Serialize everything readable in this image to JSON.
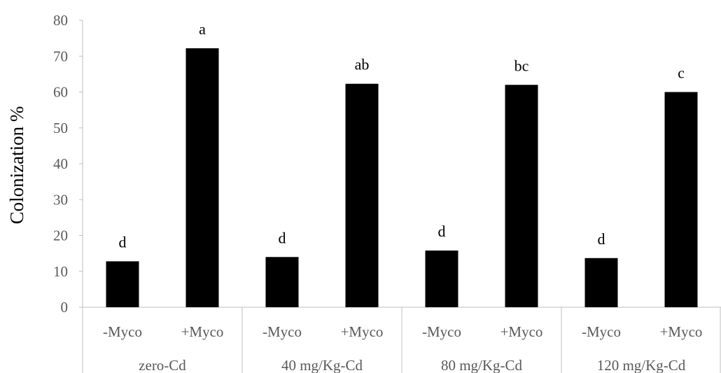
{
  "chart_data": {
    "type": "bar",
    "ylabel": "Colonization %",
    "xlabel": "",
    "ylim": [
      0,
      80
    ],
    "yticks": [
      0,
      10,
      20,
      30,
      40,
      50,
      60,
      70,
      80
    ],
    "grid": false,
    "bar_color": "#000000",
    "groups": [
      "zero-Cd",
      "40 mg/Kg-Cd",
      "80 mg/Kg-Cd",
      "120 mg/Kg-Cd"
    ],
    "categories": [
      "-Myco",
      "+Myco",
      "-Myco",
      "+Myco",
      "-Myco",
      "+Myco",
      "-Myco",
      "+Myco"
    ],
    "values": [
      12.8,
      72.2,
      14.0,
      62.3,
      15.8,
      62.0,
      13.7,
      60.0
    ],
    "annotations": [
      "d",
      "a",
      "d",
      "ab",
      "d",
      "bc",
      "d",
      "c"
    ]
  }
}
